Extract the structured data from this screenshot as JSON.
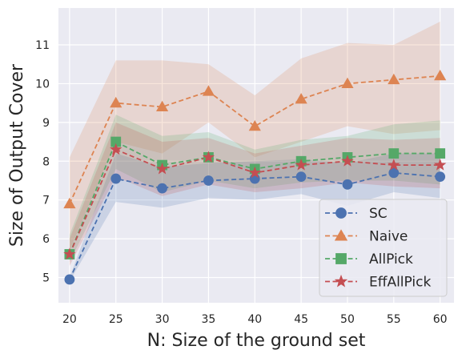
{
  "chart_data": {
    "type": "line",
    "xlabel": "N: Size of the ground set",
    "ylabel": "Size of Output Cover",
    "x": [
      20,
      25,
      30,
      35,
      40,
      45,
      50,
      55,
      60
    ],
    "xticks": [
      "20",
      "25",
      "30",
      "35",
      "40",
      "45",
      "50",
      "55",
      "60"
    ],
    "yticks": [
      "5",
      "6",
      "7",
      "8",
      "9",
      "10",
      "11"
    ],
    "xlim": [
      18.8,
      61.5
    ],
    "ylim": [
      4.35,
      11.95
    ],
    "grid": true,
    "legend_position": "lower-right",
    "series": [
      {
        "name": "SC",
        "color": "#4c72b0",
        "marker": "circle",
        "values": [
          4.95,
          7.55,
          7.3,
          7.5,
          7.55,
          7.6,
          7.4,
          7.7,
          7.6
        ],
        "lower": [
          4.9,
          6.95,
          6.8,
          7.05,
          7.0,
          7.15,
          6.85,
          7.2,
          7.05
        ],
        "upper": [
          5.0,
          8.2,
          7.85,
          7.95,
          8.0,
          8.05,
          7.95,
          8.2,
          8.2
        ]
      },
      {
        "name": "Naive",
        "color": "#dd8452",
        "marker": "triangle",
        "values": [
          6.9,
          9.5,
          9.4,
          9.8,
          8.9,
          9.6,
          10.0,
          10.1,
          10.2
        ],
        "lower": [
          5.7,
          8.5,
          8.2,
          9.0,
          8.1,
          8.5,
          8.9,
          8.7,
          8.8
        ],
        "upper": [
          8.1,
          10.6,
          10.6,
          10.5,
          9.7,
          10.65,
          11.05,
          11.0,
          11.6
        ]
      },
      {
        "name": "AllPick",
        "color": "#55a868",
        "marker": "square",
        "values": [
          5.6,
          8.5,
          7.9,
          8.1,
          7.8,
          8.0,
          8.1,
          8.2,
          8.2
        ],
        "lower": [
          5.4,
          7.8,
          7.2,
          7.5,
          7.3,
          7.45,
          7.5,
          7.5,
          7.4
        ],
        "upper": [
          6.1,
          9.2,
          8.65,
          8.75,
          8.3,
          8.55,
          8.65,
          8.95,
          9.05
        ]
      },
      {
        "name": "EffAllPick",
        "color": "#c44e52",
        "marker": "star",
        "values": [
          5.6,
          8.3,
          7.8,
          8.1,
          7.7,
          7.9,
          8.0,
          7.9,
          7.9
        ],
        "lower": [
          5.3,
          7.6,
          7.1,
          7.4,
          7.2,
          7.3,
          7.45,
          7.35,
          7.3
        ],
        "upper": [
          6.0,
          9.0,
          8.5,
          8.6,
          8.2,
          8.4,
          8.6,
          8.55,
          8.6
        ]
      }
    ]
  }
}
